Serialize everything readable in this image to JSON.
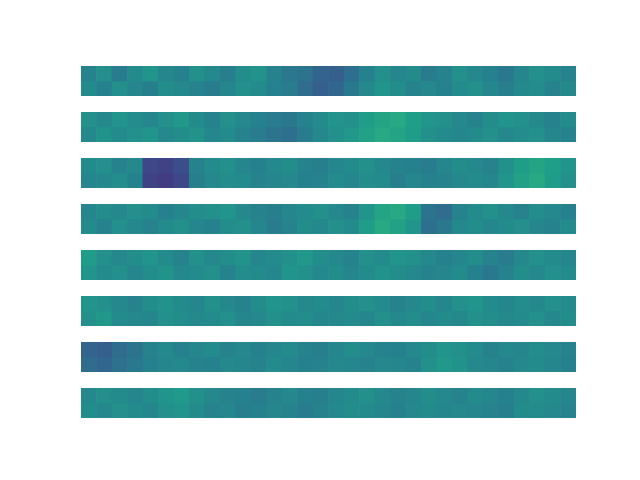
{
  "chart_data": [
    {
      "type": "heatmap",
      "color": "viridis",
      "tick_labels": false,
      "grid": false,
      "color_range": [
        0,
        1
      ],
      "cells": [
        [
          0.45,
          0.5,
          0.42,
          0.48,
          0.52,
          0.46,
          0.44,
          0.5,
          0.47,
          0.43,
          0.49,
          0.51,
          0.45,
          0.4,
          0.38,
          0.32,
          0.3,
          0.36,
          0.44,
          0.5,
          0.46,
          0.48,
          0.42,
          0.45,
          0.5,
          0.47,
          0.44,
          0.4,
          0.46,
          0.5,
          0.48,
          0.45
        ],
        [
          0.48,
          0.44,
          0.5,
          0.46,
          0.43,
          0.49,
          0.47,
          0.45,
          0.42,
          0.46,
          0.5,
          0.48,
          0.44,
          0.42,
          0.35,
          0.3,
          0.33,
          0.4,
          0.47,
          0.52,
          0.49,
          0.45,
          0.47,
          0.44,
          0.48,
          0.5,
          0.46,
          0.43,
          0.47,
          0.49,
          0.45,
          0.47
        ]
      ]
    },
    {
      "type": "heatmap",
      "color": "viridis",
      "tick_labels": false,
      "grid": false,
      "color_range": [
        0,
        1
      ],
      "cells": [
        [
          0.5,
          0.47,
          0.52,
          0.49,
          0.46,
          0.5,
          0.53,
          0.48,
          0.45,
          0.5,
          0.47,
          0.44,
          0.42,
          0.4,
          0.45,
          0.48,
          0.52,
          0.5,
          0.55,
          0.58,
          0.6,
          0.56,
          0.52,
          0.5,
          0.47,
          0.45,
          0.49,
          0.52,
          0.5,
          0.47,
          0.45,
          0.48
        ],
        [
          0.47,
          0.51,
          0.48,
          0.5,
          0.52,
          0.47,
          0.49,
          0.51,
          0.46,
          0.48,
          0.45,
          0.42,
          0.38,
          0.36,
          0.42,
          0.47,
          0.5,
          0.53,
          0.57,
          0.6,
          0.58,
          0.55,
          0.5,
          0.48,
          0.46,
          0.48,
          0.5,
          0.47,
          0.49,
          0.5,
          0.46,
          0.45
        ]
      ]
    },
    {
      "type": "heatmap",
      "color": "viridis",
      "tick_labels": false,
      "grid": false,
      "color_range": [
        0,
        1
      ],
      "cells": [
        [
          0.48,
          0.5,
          0.45,
          0.47,
          0.22,
          0.2,
          0.24,
          0.45,
          0.48,
          0.5,
          0.46,
          0.44,
          0.47,
          0.49,
          0.45,
          0.43,
          0.46,
          0.48,
          0.5,
          0.47,
          0.45,
          0.44,
          0.42,
          0.46,
          0.49,
          0.47,
          0.45,
          0.5,
          0.55,
          0.58,
          0.56,
          0.52
        ],
        [
          0.46,
          0.47,
          0.49,
          0.44,
          0.2,
          0.18,
          0.22,
          0.43,
          0.47,
          0.49,
          0.48,
          0.45,
          0.46,
          0.47,
          0.44,
          0.45,
          0.48,
          0.46,
          0.49,
          0.48,
          0.43,
          0.46,
          0.44,
          0.45,
          0.47,
          0.48,
          0.46,
          0.52,
          0.57,
          0.6,
          0.55,
          0.5
        ]
      ]
    },
    {
      "type": "heatmap",
      "color": "viridis",
      "tick_labels": false,
      "grid": false,
      "color_range": [
        0,
        1
      ],
      "cells": [
        [
          0.46,
          0.49,
          0.47,
          0.5,
          0.48,
          0.44,
          0.46,
          0.49,
          0.5,
          0.52,
          0.47,
          0.45,
          0.43,
          0.46,
          0.48,
          0.5,
          0.47,
          0.45,
          0.52,
          0.58,
          0.6,
          0.55,
          0.38,
          0.35,
          0.45,
          0.48,
          0.5,
          0.47,
          0.45,
          0.49,
          0.47,
          0.44
        ],
        [
          0.48,
          0.45,
          0.5,
          0.47,
          0.45,
          0.48,
          0.5,
          0.46,
          0.44,
          0.49,
          0.5,
          0.46,
          0.42,
          0.45,
          0.49,
          0.47,
          0.5,
          0.48,
          0.55,
          0.6,
          0.57,
          0.52,
          0.36,
          0.4,
          0.47,
          0.49,
          0.46,
          0.48,
          0.5,
          0.46,
          0.45,
          0.48
        ]
      ]
    },
    {
      "type": "heatmap",
      "color": "viridis",
      "tick_labels": false,
      "grid": false,
      "color_range": [
        0,
        1
      ],
      "cells": [
        [
          0.55,
          0.5,
          0.47,
          0.49,
          0.52,
          0.48,
          0.45,
          0.5,
          0.47,
          0.49,
          0.51,
          0.46,
          0.48,
          0.5,
          0.53,
          0.49,
          0.47,
          0.45,
          0.5,
          0.48,
          0.52,
          0.5,
          0.47,
          0.44,
          0.46,
          0.49,
          0.45,
          0.42,
          0.47,
          0.5,
          0.48,
          0.46
        ],
        [
          0.52,
          0.48,
          0.5,
          0.46,
          0.49,
          0.51,
          0.47,
          0.48,
          0.5,
          0.45,
          0.49,
          0.48,
          0.46,
          0.52,
          0.5,
          0.47,
          0.49,
          0.46,
          0.48,
          0.51,
          0.49,
          0.47,
          0.45,
          0.46,
          0.48,
          0.44,
          0.4,
          0.45,
          0.49,
          0.47,
          0.5,
          0.48
        ]
      ]
    },
    {
      "type": "heatmap",
      "color": "viridis",
      "tick_labels": false,
      "grid": false,
      "color_range": [
        0,
        1
      ],
      "cells": [
        [
          0.52,
          0.5,
          0.47,
          0.45,
          0.49,
          0.51,
          0.48,
          0.46,
          0.5,
          0.47,
          0.45,
          0.49,
          0.52,
          0.5,
          0.47,
          0.48,
          0.46,
          0.49,
          0.5,
          0.48,
          0.45,
          0.47,
          0.49,
          0.46,
          0.5,
          0.52,
          0.48,
          0.46,
          0.49,
          0.47,
          0.5,
          0.48
        ],
        [
          0.5,
          0.53,
          0.48,
          0.47,
          0.46,
          0.5,
          0.49,
          0.47,
          0.48,
          0.5,
          0.46,
          0.47,
          0.5,
          0.48,
          0.49,
          0.46,
          0.47,
          0.48,
          0.46,
          0.5,
          0.47,
          0.49,
          0.46,
          0.48,
          0.47,
          0.5,
          0.49,
          0.47,
          0.48,
          0.5,
          0.47,
          0.49
        ]
      ]
    },
    {
      "type": "heatmap",
      "color": "viridis",
      "tick_labels": false,
      "grid": false,
      "color_range": [
        0,
        1
      ],
      "cells": [
        [
          0.32,
          0.3,
          0.35,
          0.38,
          0.45,
          0.47,
          0.44,
          0.46,
          0.48,
          0.45,
          0.47,
          0.44,
          0.46,
          0.48,
          0.45,
          0.43,
          0.46,
          0.49,
          0.47,
          0.45,
          0.44,
          0.47,
          0.49,
          0.52,
          0.5,
          0.48,
          0.45,
          0.47,
          0.46,
          0.49,
          0.47,
          0.45
        ],
        [
          0.35,
          0.33,
          0.37,
          0.4,
          0.44,
          0.46,
          0.47,
          0.45,
          0.44,
          0.47,
          0.46,
          0.45,
          0.48,
          0.46,
          0.44,
          0.45,
          0.47,
          0.46,
          0.45,
          0.47,
          0.46,
          0.45,
          0.5,
          0.53,
          0.51,
          0.47,
          0.46,
          0.45,
          0.47,
          0.48,
          0.46,
          0.44
        ]
      ]
    },
    {
      "type": "heatmap",
      "color": "viridis",
      "tick_labels": false,
      "grid": false,
      "color_range": [
        0,
        1
      ],
      "cells": [
        [
          0.47,
          0.5,
          0.48,
          0.46,
          0.49,
          0.52,
          0.54,
          0.5,
          0.47,
          0.45,
          0.44,
          0.42,
          0.45,
          0.47,
          0.44,
          0.43,
          0.46,
          0.48,
          0.5,
          0.47,
          0.45,
          0.46,
          0.49,
          0.47,
          0.45,
          0.48,
          0.46,
          0.44,
          0.47,
          0.5,
          0.48,
          0.46
        ],
        [
          0.49,
          0.47,
          0.5,
          0.48,
          0.46,
          0.5,
          0.52,
          0.48,
          0.45,
          0.46,
          0.43,
          0.44,
          0.46,
          0.45,
          0.42,
          0.45,
          0.47,
          0.49,
          0.48,
          0.46,
          0.44,
          0.47,
          0.48,
          0.46,
          0.47,
          0.46,
          0.45,
          0.43,
          0.48,
          0.49,
          0.47,
          0.45
        ]
      ]
    }
  ]
}
